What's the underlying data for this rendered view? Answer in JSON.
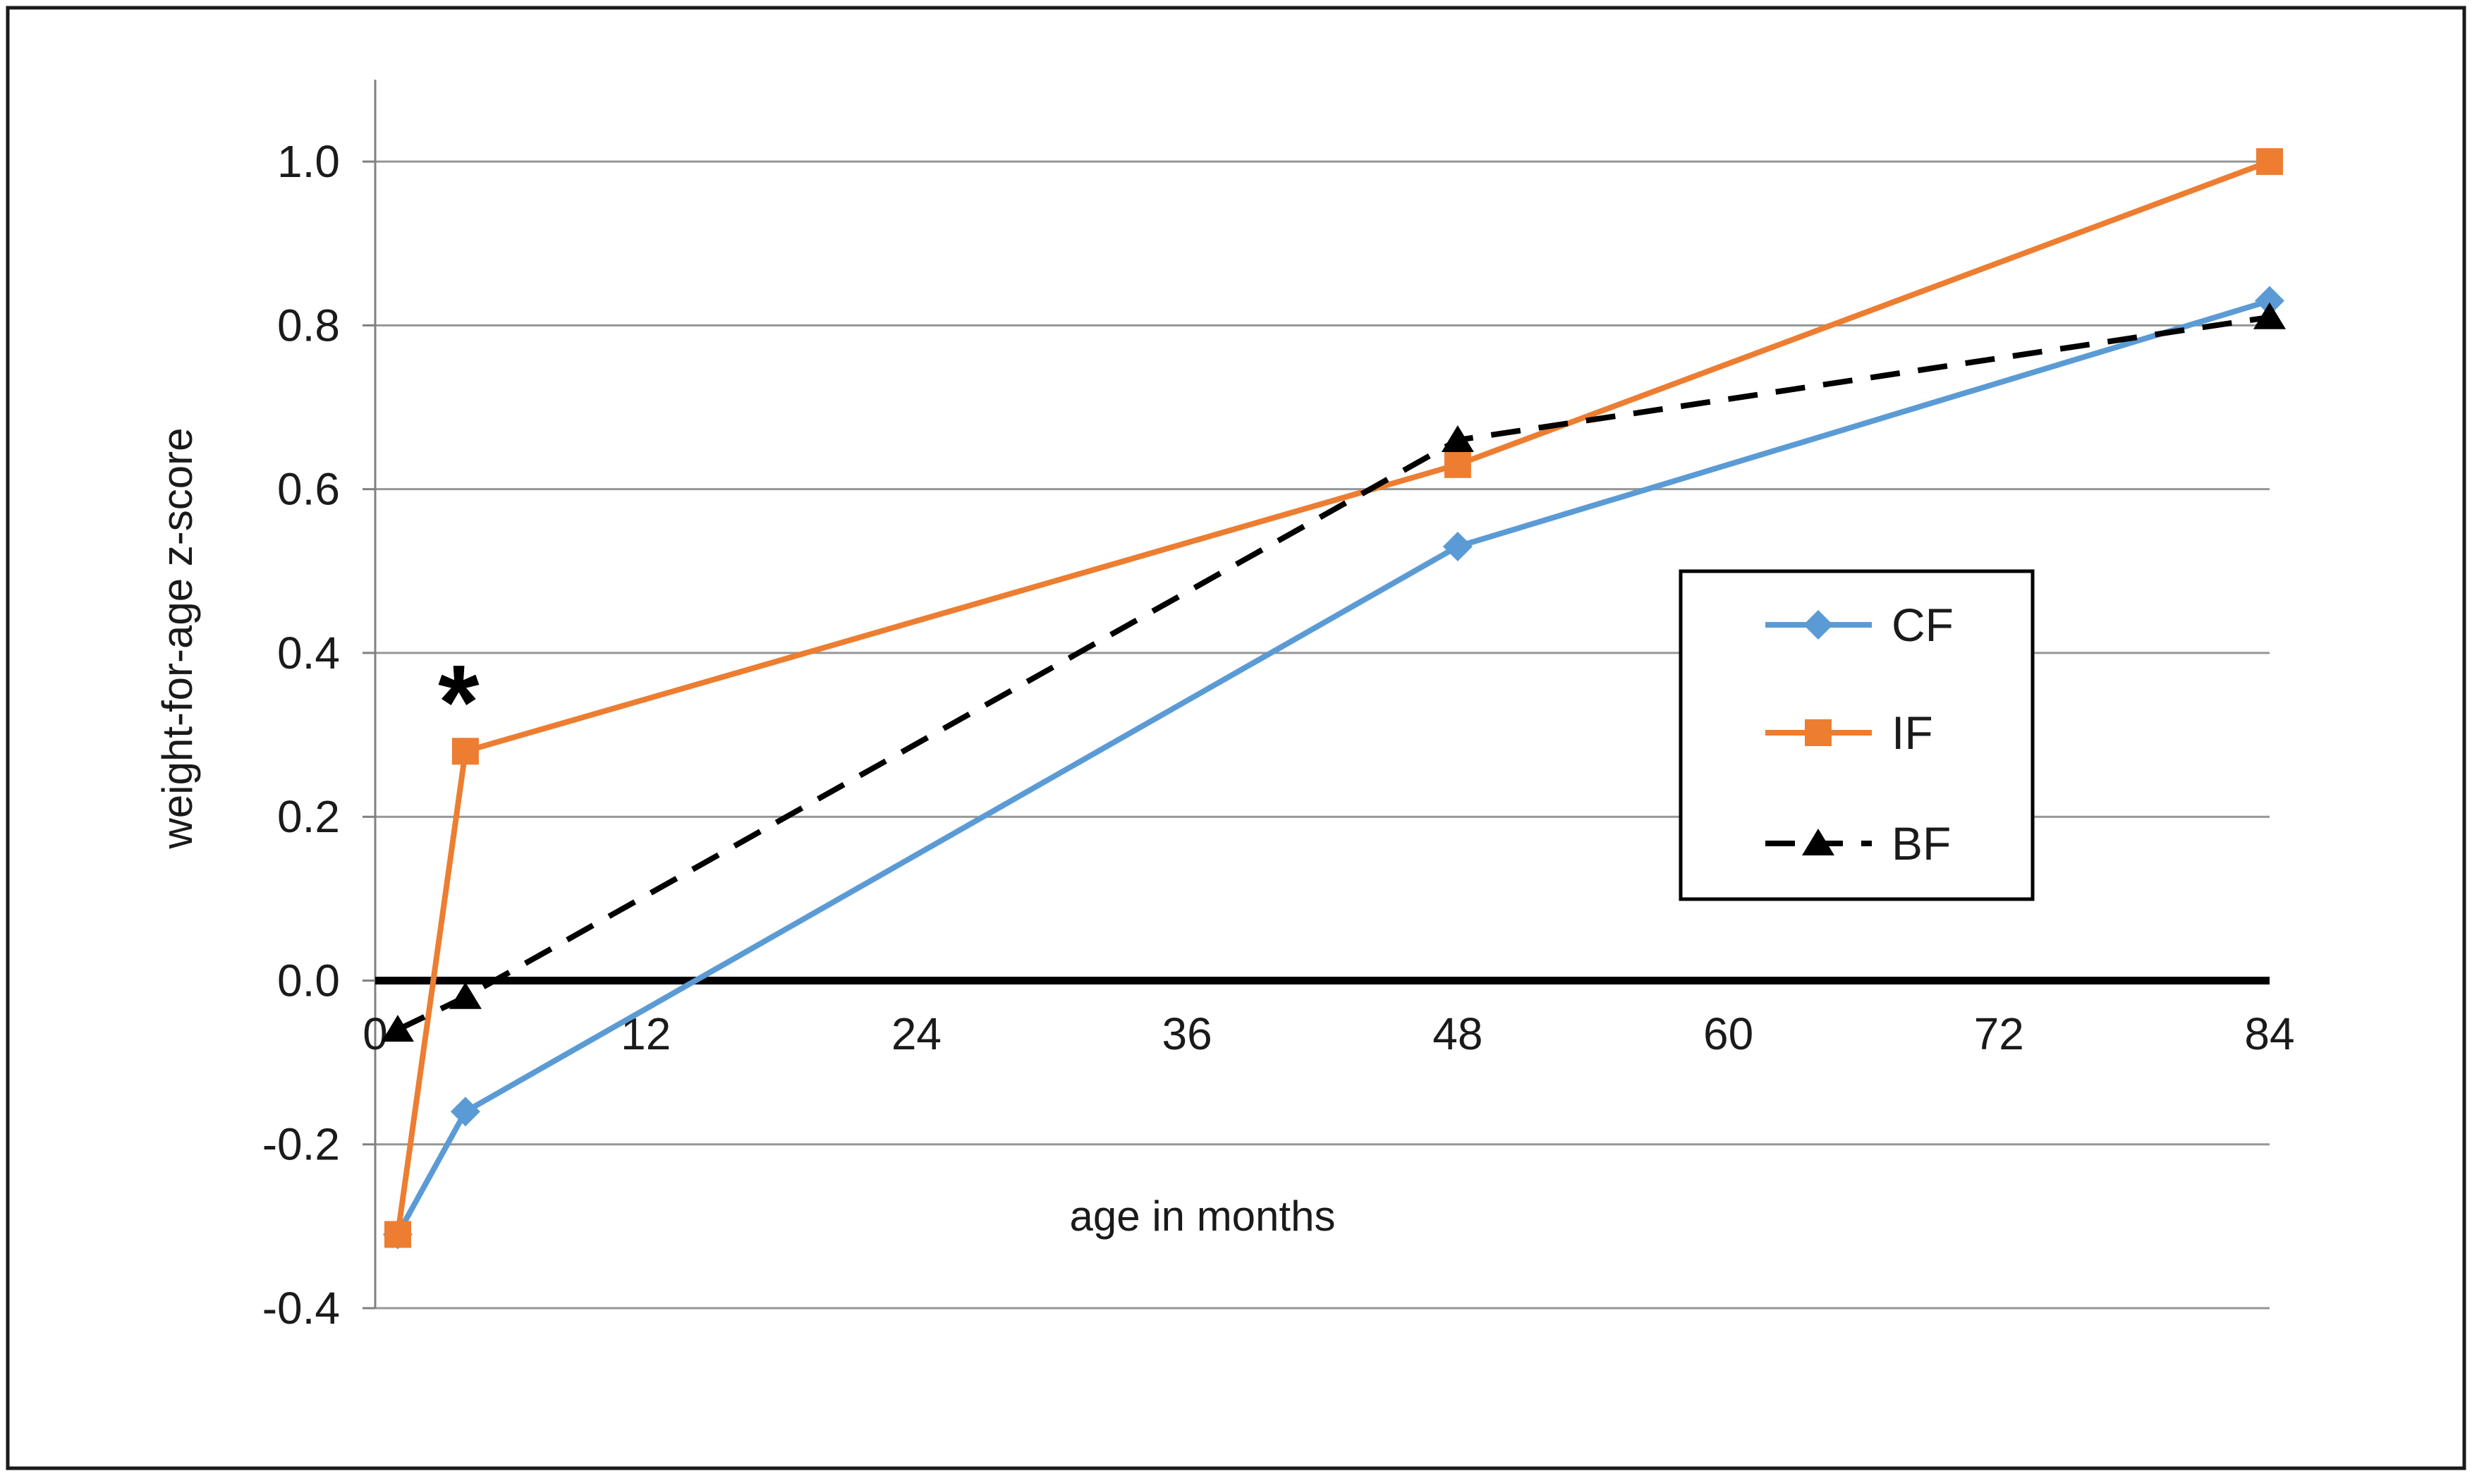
{
  "chart_data": {
    "type": "line",
    "title": "",
    "xlabel": "age in months",
    "ylabel": "weight-for-age z-score",
    "x_months": [
      1,
      4,
      48,
      84
    ],
    "series": [
      {
        "name": "CF",
        "color": "#5B9BD5",
        "marker": "diamond",
        "line_style": "solid",
        "values": [
          -0.31,
          -0.16,
          0.53,
          0.83
        ]
      },
      {
        "name": "IF",
        "color": "#ED7D31",
        "marker": "square",
        "line_style": "solid",
        "values": [
          -0.31,
          0.28,
          0.63,
          1.0
        ]
      },
      {
        "name": "BF",
        "color": "#000000",
        "marker": "triangle",
        "line_style": "dashed",
        "values": [
          -0.06,
          -0.02,
          0.66,
          0.81
        ]
      }
    ],
    "xlim": [
      0,
      84
    ],
    "ylim": [
      -0.4,
      1.1
    ],
    "xticks": [
      0,
      12,
      24,
      36,
      48,
      60,
      72,
      84
    ],
    "ytick_values": [
      1.0,
      0.8,
      0.6,
      0.4,
      0.2,
      0.0,
      -0.2,
      -0.4
    ],
    "ytick_labels": [
      "1.0",
      "0.8",
      "0.6",
      "0.4",
      "0.2",
      "0.0",
      "-0.2",
      "-0.4"
    ],
    "grid": true,
    "zero_line_emphasized": true,
    "legend": {
      "position": "middle-right",
      "entries": [
        "CF",
        "IF",
        "BF"
      ]
    },
    "annotation": {
      "text": "*",
      "x_month": 3.7,
      "value": 0.36
    },
    "colors": {
      "cf_blue": "#5B9BD5",
      "if_orange": "#ED7D31",
      "bf_black": "#000000",
      "gridline": "#969696",
      "axis_line": "#808080",
      "zero_line": "#000000",
      "text": "#1A1A1A",
      "figure_border": "#1A1A1A",
      "legend_border": "#000000",
      "background": "#FFFFFF"
    }
  }
}
